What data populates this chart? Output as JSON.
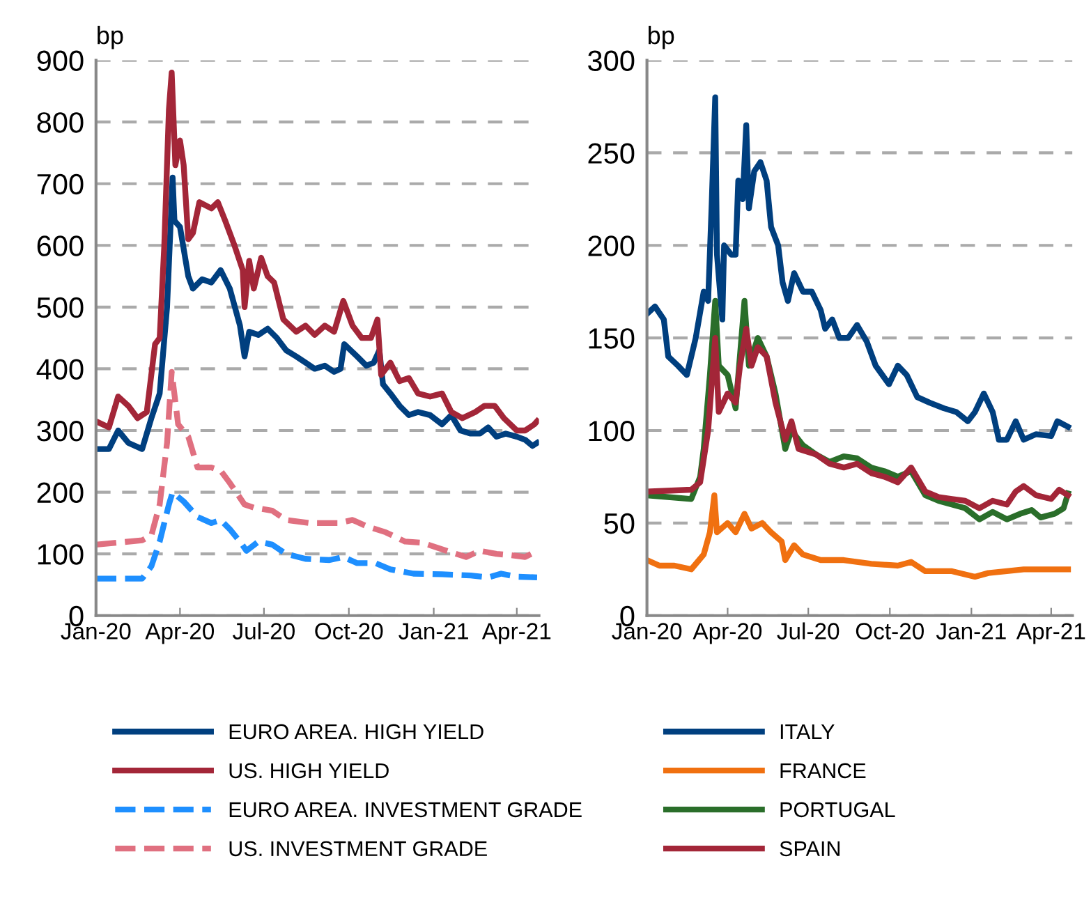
{
  "chart_data": [
    {
      "type": "line",
      "ylabel": "bp",
      "ylim": [
        0,
        900
      ],
      "yticks": [
        0,
        100,
        200,
        300,
        400,
        500,
        600,
        700,
        800,
        900
      ],
      "xlim": [
        "2020-01-01",
        "2021-04-25"
      ],
      "xticks": [
        {
          "value": "2020-01-01",
          "label": "Jan-20"
        },
        {
          "value": "2020-04-01",
          "label": "Apr-20"
        },
        {
          "value": "2020-07-01",
          "label": "Jul-20"
        },
        {
          "value": "2020-10-01",
          "label": "Oct-20"
        },
        {
          "value": "2021-01-01",
          "label": "Jan-21"
        },
        {
          "value": "2021-04-01",
          "label": "Apr-21"
        }
      ],
      "grid": "y",
      "legend": "bottom",
      "series": [
        {
          "name": "EURO AREA. HIGH YIELD",
          "color": "#003f7f",
          "x": [
            "2020-01-01",
            "2020-01-15",
            "2020-01-25",
            "2020-02-05",
            "2020-02-20",
            "2020-03-01",
            "2020-03-10",
            "2020-03-18",
            "2020-03-24",
            "2020-03-26",
            "2020-04-01",
            "2020-04-10",
            "2020-04-15",
            "2020-04-25",
            "2020-05-05",
            "2020-05-15",
            "2020-05-25",
            "2020-06-05",
            "2020-06-10",
            "2020-06-15",
            "2020-06-25",
            "2020-07-05",
            "2020-07-15",
            "2020-07-25",
            "2020-08-05",
            "2020-08-15",
            "2020-08-25",
            "2020-09-05",
            "2020-09-15",
            "2020-09-22",
            "2020-09-26",
            "2020-10-10",
            "2020-10-20",
            "2020-10-28",
            "2020-11-03",
            "2020-11-07",
            "2020-11-15",
            "2020-11-25",
            "2020-12-05",
            "2020-12-15",
            "2020-12-28",
            "2021-01-10",
            "2021-01-20",
            "2021-01-30",
            "2021-02-10",
            "2021-02-20",
            "2021-03-01",
            "2021-03-10",
            "2021-03-20",
            "2021-04-01",
            "2021-04-10",
            "2021-04-18",
            "2021-04-23"
          ],
          "values": [
            270,
            270,
            300,
            280,
            270,
            320,
            360,
            500,
            710,
            640,
            630,
            550,
            530,
            545,
            540,
            560,
            530,
            470,
            420,
            460,
            455,
            465,
            450,
            430,
            420,
            410,
            400,
            405,
            395,
            400,
            440,
            420,
            405,
            410,
            430,
            375,
            360,
            340,
            325,
            330,
            325,
            310,
            325,
            300,
            295,
            295,
            305,
            290,
            295,
            290,
            285,
            275,
            280
          ]
        },
        {
          "name": "US. HIGH YIELD",
          "color": "#a32638",
          "x": [
            "2020-01-01",
            "2020-01-15",
            "2020-01-25",
            "2020-02-05",
            "2020-02-15",
            "2020-02-25",
            "2020-03-05",
            "2020-03-10",
            "2020-03-15",
            "2020-03-20",
            "2020-03-23",
            "2020-03-27",
            "2020-04-01",
            "2020-04-05",
            "2020-04-10",
            "2020-04-15",
            "2020-04-22",
            "2020-05-05",
            "2020-05-12",
            "2020-05-20",
            "2020-05-30",
            "2020-06-08",
            "2020-06-10",
            "2020-06-15",
            "2020-06-20",
            "2020-06-28",
            "2020-07-05",
            "2020-07-12",
            "2020-07-22",
            "2020-08-05",
            "2020-08-15",
            "2020-08-25",
            "2020-09-05",
            "2020-09-15",
            "2020-09-25",
            "2020-10-05",
            "2020-10-15",
            "2020-10-25",
            "2020-11-01",
            "2020-11-05",
            "2020-11-15",
            "2020-11-25",
            "2020-12-05",
            "2020-12-15",
            "2020-12-28",
            "2021-01-10",
            "2021-01-20",
            "2021-02-01",
            "2021-02-15",
            "2021-02-25",
            "2021-03-08",
            "2021-03-18",
            "2021-04-01",
            "2021-04-10",
            "2021-04-20",
            "2021-04-23"
          ],
          "values": [
            315,
            305,
            355,
            340,
            320,
            330,
            440,
            450,
            600,
            820,
            880,
            730,
            770,
            730,
            610,
            620,
            670,
            660,
            670,
            640,
            600,
            560,
            500,
            575,
            530,
            580,
            550,
            540,
            480,
            460,
            470,
            455,
            470,
            460,
            510,
            470,
            450,
            450,
            480,
            390,
            410,
            380,
            385,
            360,
            355,
            360,
            330,
            320,
            330,
            340,
            340,
            320,
            300,
            300,
            310,
            315
          ]
        },
        {
          "name": "EURO AREA. INVESTMENT GRADE",
          "color": "#1e8fff",
          "line_style": "dashed",
          "x": [
            "2020-01-01",
            "2020-02-20",
            "2020-03-01",
            "2020-03-10",
            "2020-03-20",
            "2020-03-24",
            "2020-04-05",
            "2020-04-20",
            "2020-05-05",
            "2020-05-15",
            "2020-05-25",
            "2020-06-05",
            "2020-06-12",
            "2020-06-25",
            "2020-07-10",
            "2020-07-25",
            "2020-08-15",
            "2020-09-10",
            "2020-09-25",
            "2020-10-10",
            "2020-10-30",
            "2020-11-15",
            "2020-12-10",
            "2021-01-10",
            "2021-02-10",
            "2021-03-01",
            "2021-03-15",
            "2021-04-01",
            "2021-04-23"
          ],
          "values": [
            60,
            60,
            80,
            120,
            180,
            200,
            185,
            160,
            150,
            155,
            140,
            120,
            105,
            120,
            115,
            100,
            92,
            90,
            95,
            85,
            85,
            75,
            68,
            67,
            65,
            62,
            68,
            63,
            62
          ]
        },
        {
          "name": "US. INVESTMENT GRADE",
          "color": "#e07080",
          "line_style": "dashed",
          "x": [
            "2020-01-01",
            "2020-02-20",
            "2020-03-01",
            "2020-03-10",
            "2020-03-18",
            "2020-03-23",
            "2020-03-30",
            "2020-04-10",
            "2020-04-20",
            "2020-05-05",
            "2020-05-15",
            "2020-05-25",
            "2020-06-10",
            "2020-06-20",
            "2020-07-10",
            "2020-07-25",
            "2020-08-20",
            "2020-09-20",
            "2020-10-05",
            "2020-10-20",
            "2020-11-10",
            "2020-12-01",
            "2020-12-20",
            "2021-01-15",
            "2021-02-05",
            "2021-02-20",
            "2021-03-10",
            "2021-03-25",
            "2021-04-10",
            "2021-04-23"
          ],
          "values": [
            115,
            122,
            130,
            180,
            280,
            395,
            310,
            290,
            240,
            240,
            235,
            215,
            180,
            175,
            170,
            155,
            150,
            150,
            155,
            145,
            135,
            120,
            118,
            105,
            95,
            105,
            100,
            98,
            95,
            105
          ]
        }
      ]
    },
    {
      "type": "line",
      "ylabel": "bp",
      "ylim": [
        0,
        300
      ],
      "yticks": [
        0,
        50,
        100,
        150,
        200,
        250,
        300
      ],
      "xlim": [
        "2020-01-01",
        "2021-04-25"
      ],
      "xticks": [
        {
          "value": "2020-01-01",
          "label": "Jan-20"
        },
        {
          "value": "2020-04-01",
          "label": "Apr-20"
        },
        {
          "value": "2020-07-01",
          "label": "Jul-20"
        },
        {
          "value": "2020-10-01",
          "label": "Oct-20"
        },
        {
          "value": "2021-01-01",
          "label": "Jan-21"
        },
        {
          "value": "2021-04-01",
          "label": "Apr-21"
        }
      ],
      "grid": "y",
      "legend": "bottom",
      "series": [
        {
          "name": "ITALY",
          "color": "#003f7f",
          "x": [
            "2020-01-01",
            "2020-01-10",
            "2020-01-20",
            "2020-01-25",
            "2020-02-05",
            "2020-02-15",
            "2020-02-25",
            "2020-03-05",
            "2020-03-10",
            "2020-03-14",
            "2020-03-18",
            "2020-03-20",
            "2020-03-26",
            "2020-03-28",
            "2020-04-05",
            "2020-04-10",
            "2020-04-13",
            "2020-04-18",
            "2020-04-22",
            "2020-04-25",
            "2020-05-01",
            "2020-05-08",
            "2020-05-15",
            "2020-05-20",
            "2020-05-28",
            "2020-06-02",
            "2020-06-08",
            "2020-06-15",
            "2020-06-25",
            "2020-07-05",
            "2020-07-15",
            "2020-07-20",
            "2020-07-28",
            "2020-08-05",
            "2020-08-15",
            "2020-08-25",
            "2020-09-05",
            "2020-09-15",
            "2020-09-30",
            "2020-10-10",
            "2020-10-20",
            "2020-11-01",
            "2020-11-15",
            "2020-12-01",
            "2020-12-15",
            "2020-12-28",
            "2021-01-05",
            "2021-01-15",
            "2021-01-25",
            "2021-02-01",
            "2021-02-10",
            "2021-02-20",
            "2021-03-01",
            "2021-03-15",
            "2021-04-01",
            "2021-04-08",
            "2021-04-20"
          ],
          "values": [
            163,
            167,
            160,
            140,
            135,
            130,
            150,
            175,
            170,
            222,
            280,
            195,
            160,
            200,
            195,
            195,
            235,
            225,
            265,
            220,
            240,
            245,
            235,
            210,
            200,
            180,
            170,
            185,
            175,
            175,
            165,
            155,
            160,
            150,
            150,
            157,
            148,
            135,
            125,
            135,
            130,
            118,
            115,
            112,
            110,
            105,
            110,
            120,
            110,
            95,
            95,
            105,
            95,
            98,
            97,
            105,
            102
          ]
        },
        {
          "name": "FRANCE",
          "color": "#f07010",
          "x": [
            "2020-01-01",
            "2020-01-15",
            "2020-02-01",
            "2020-02-20",
            "2020-03-05",
            "2020-03-12",
            "2020-03-17",
            "2020-03-20",
            "2020-04-01",
            "2020-04-10",
            "2020-04-20",
            "2020-04-28",
            "2020-05-10",
            "2020-05-20",
            "2020-06-01",
            "2020-06-05",
            "2020-06-15",
            "2020-06-25",
            "2020-07-15",
            "2020-08-10",
            "2020-09-10",
            "2020-10-10",
            "2020-10-25",
            "2020-11-10",
            "2020-12-10",
            "2021-01-05",
            "2021-01-20",
            "2021-02-10",
            "2021-03-01",
            "2021-04-20"
          ],
          "values": [
            30,
            27,
            27,
            25,
            33,
            45,
            65,
            45,
            50,
            45,
            55,
            47,
            50,
            45,
            40,
            30,
            38,
            33,
            30,
            30,
            28,
            27,
            29,
            24,
            24,
            21,
            23,
            24,
            25,
            25
          ]
        },
        {
          "name": "PORTUGAL",
          "color": "#2a6e2a",
          "x": [
            "2020-01-01",
            "2020-02-20",
            "2020-03-01",
            "2020-03-05",
            "2020-03-12",
            "2020-03-18",
            "2020-03-22",
            "2020-04-01",
            "2020-04-10",
            "2020-04-20",
            "2020-04-25",
            "2020-05-05",
            "2020-05-15",
            "2020-05-25",
            "2020-06-05",
            "2020-06-12",
            "2020-06-25",
            "2020-07-10",
            "2020-07-25",
            "2020-08-10",
            "2020-08-25",
            "2020-09-10",
            "2020-09-25",
            "2020-10-10",
            "2020-10-25",
            "2020-11-10",
            "2020-11-25",
            "2020-12-10",
            "2020-12-25",
            "2021-01-10",
            "2021-01-25",
            "2021-02-10",
            "2021-02-25",
            "2021-03-10",
            "2021-03-20",
            "2021-04-05",
            "2021-04-15",
            "2021-04-20"
          ],
          "values": [
            65,
            63,
            75,
            90,
            130,
            170,
            135,
            130,
            112,
            170,
            135,
            150,
            140,
            120,
            90,
            100,
            92,
            87,
            83,
            86,
            85,
            80,
            78,
            75,
            78,
            65,
            62,
            60,
            58,
            52,
            56,
            52,
            55,
            57,
            53,
            55,
            58,
            66
          ]
        },
        {
          "name": "SPAIN",
          "color": "#a32638",
          "x": [
            "2020-01-01",
            "2020-02-20",
            "2020-03-01",
            "2020-03-10",
            "2020-03-18",
            "2020-03-22",
            "2020-04-01",
            "2020-04-10",
            "2020-04-15",
            "2020-04-22",
            "2020-04-28",
            "2020-05-05",
            "2020-05-15",
            "2020-05-25",
            "2020-06-05",
            "2020-06-12",
            "2020-06-20",
            "2020-07-10",
            "2020-07-25",
            "2020-08-10",
            "2020-08-25",
            "2020-09-10",
            "2020-09-25",
            "2020-10-10",
            "2020-10-25",
            "2020-11-10",
            "2020-11-25",
            "2020-12-10",
            "2020-12-25",
            "2021-01-10",
            "2021-01-25",
            "2021-02-10",
            "2021-02-20",
            "2021-03-01",
            "2021-03-15",
            "2021-04-01",
            "2021-04-10",
            "2021-04-20"
          ],
          "values": [
            67,
            68,
            72,
            100,
            150,
            110,
            120,
            115,
            135,
            155,
            135,
            145,
            140,
            115,
            95,
            105,
            90,
            87,
            82,
            80,
            82,
            77,
            75,
            72,
            80,
            67,
            64,
            63,
            62,
            58,
            62,
            60,
            67,
            70,
            65,
            63,
            68,
            65
          ]
        }
      ]
    }
  ]
}
